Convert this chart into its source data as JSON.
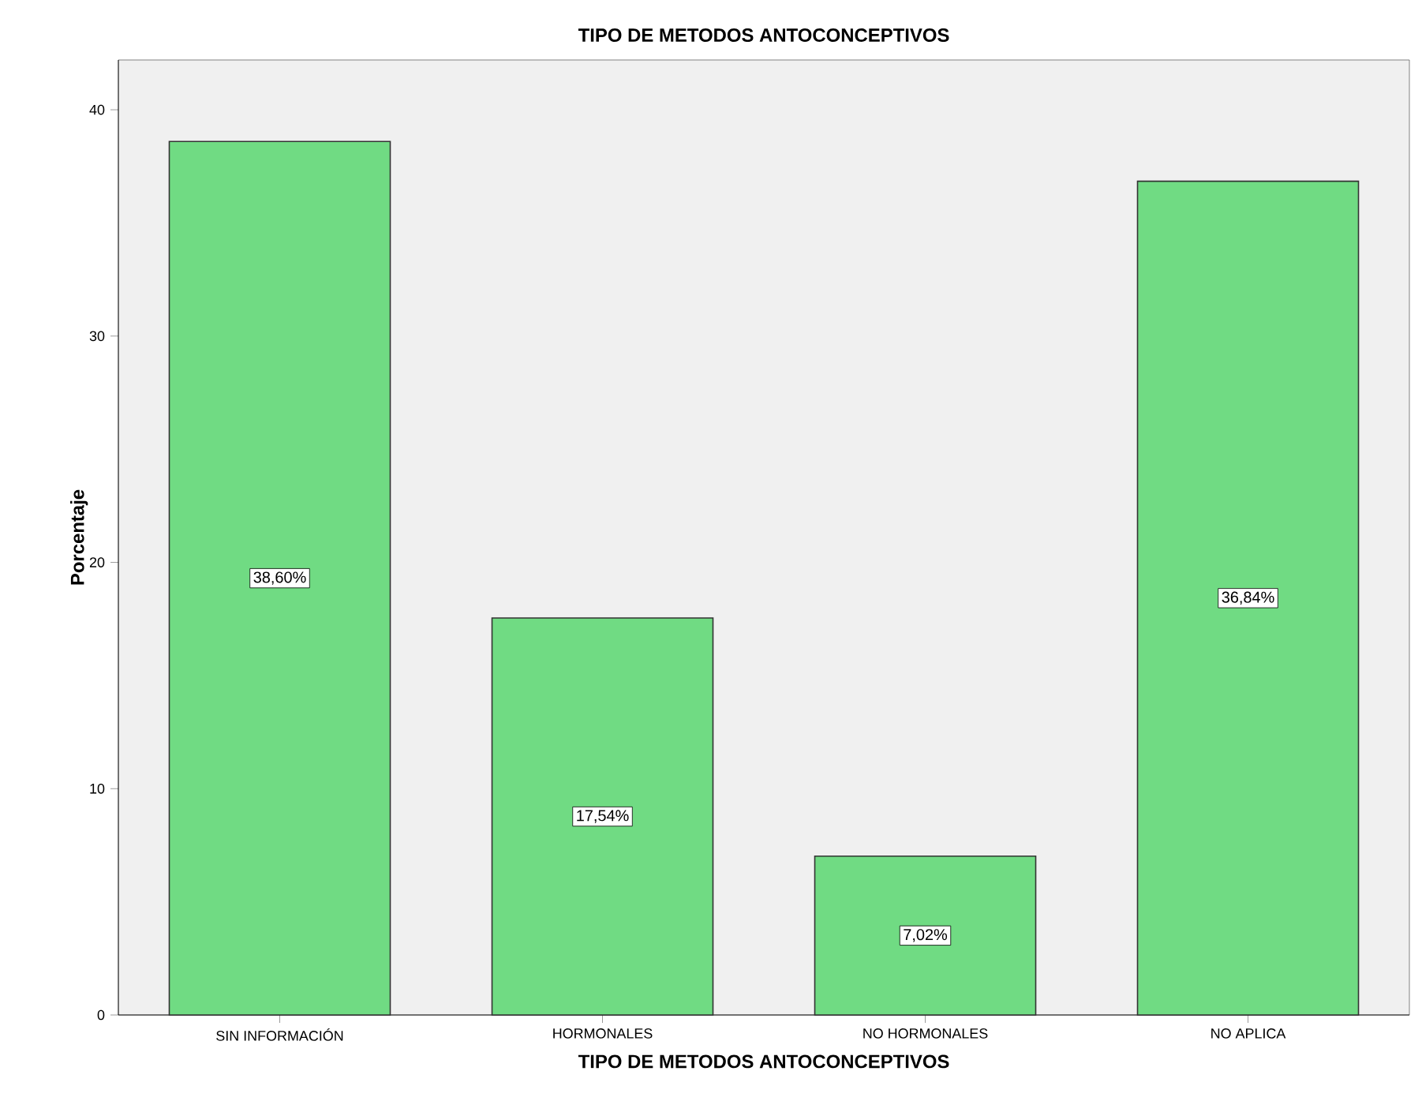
{
  "chart_data": {
    "type": "bar",
    "title": "TIPO DE METODOS ANTOCONCEPTIVOS",
    "xlabel": "TIPO DE METODOS ANTOCONCEPTIVOS",
    "ylabel": "Porcentaje",
    "categories": [
      "SIN INFORMACIÓN",
      "HORMONALES",
      "NO HORMONALES",
      "NO APLICA"
    ],
    "values": [
      38.6,
      17.54,
      7.02,
      36.84
    ],
    "value_labels": [
      "38,60%",
      "17,54%",
      "7,02%",
      "36,84%"
    ],
    "color": "#70db83",
    "ylim": [
      0,
      42.2
    ],
    "yticks": [
      0,
      10,
      20,
      30,
      40
    ]
  }
}
